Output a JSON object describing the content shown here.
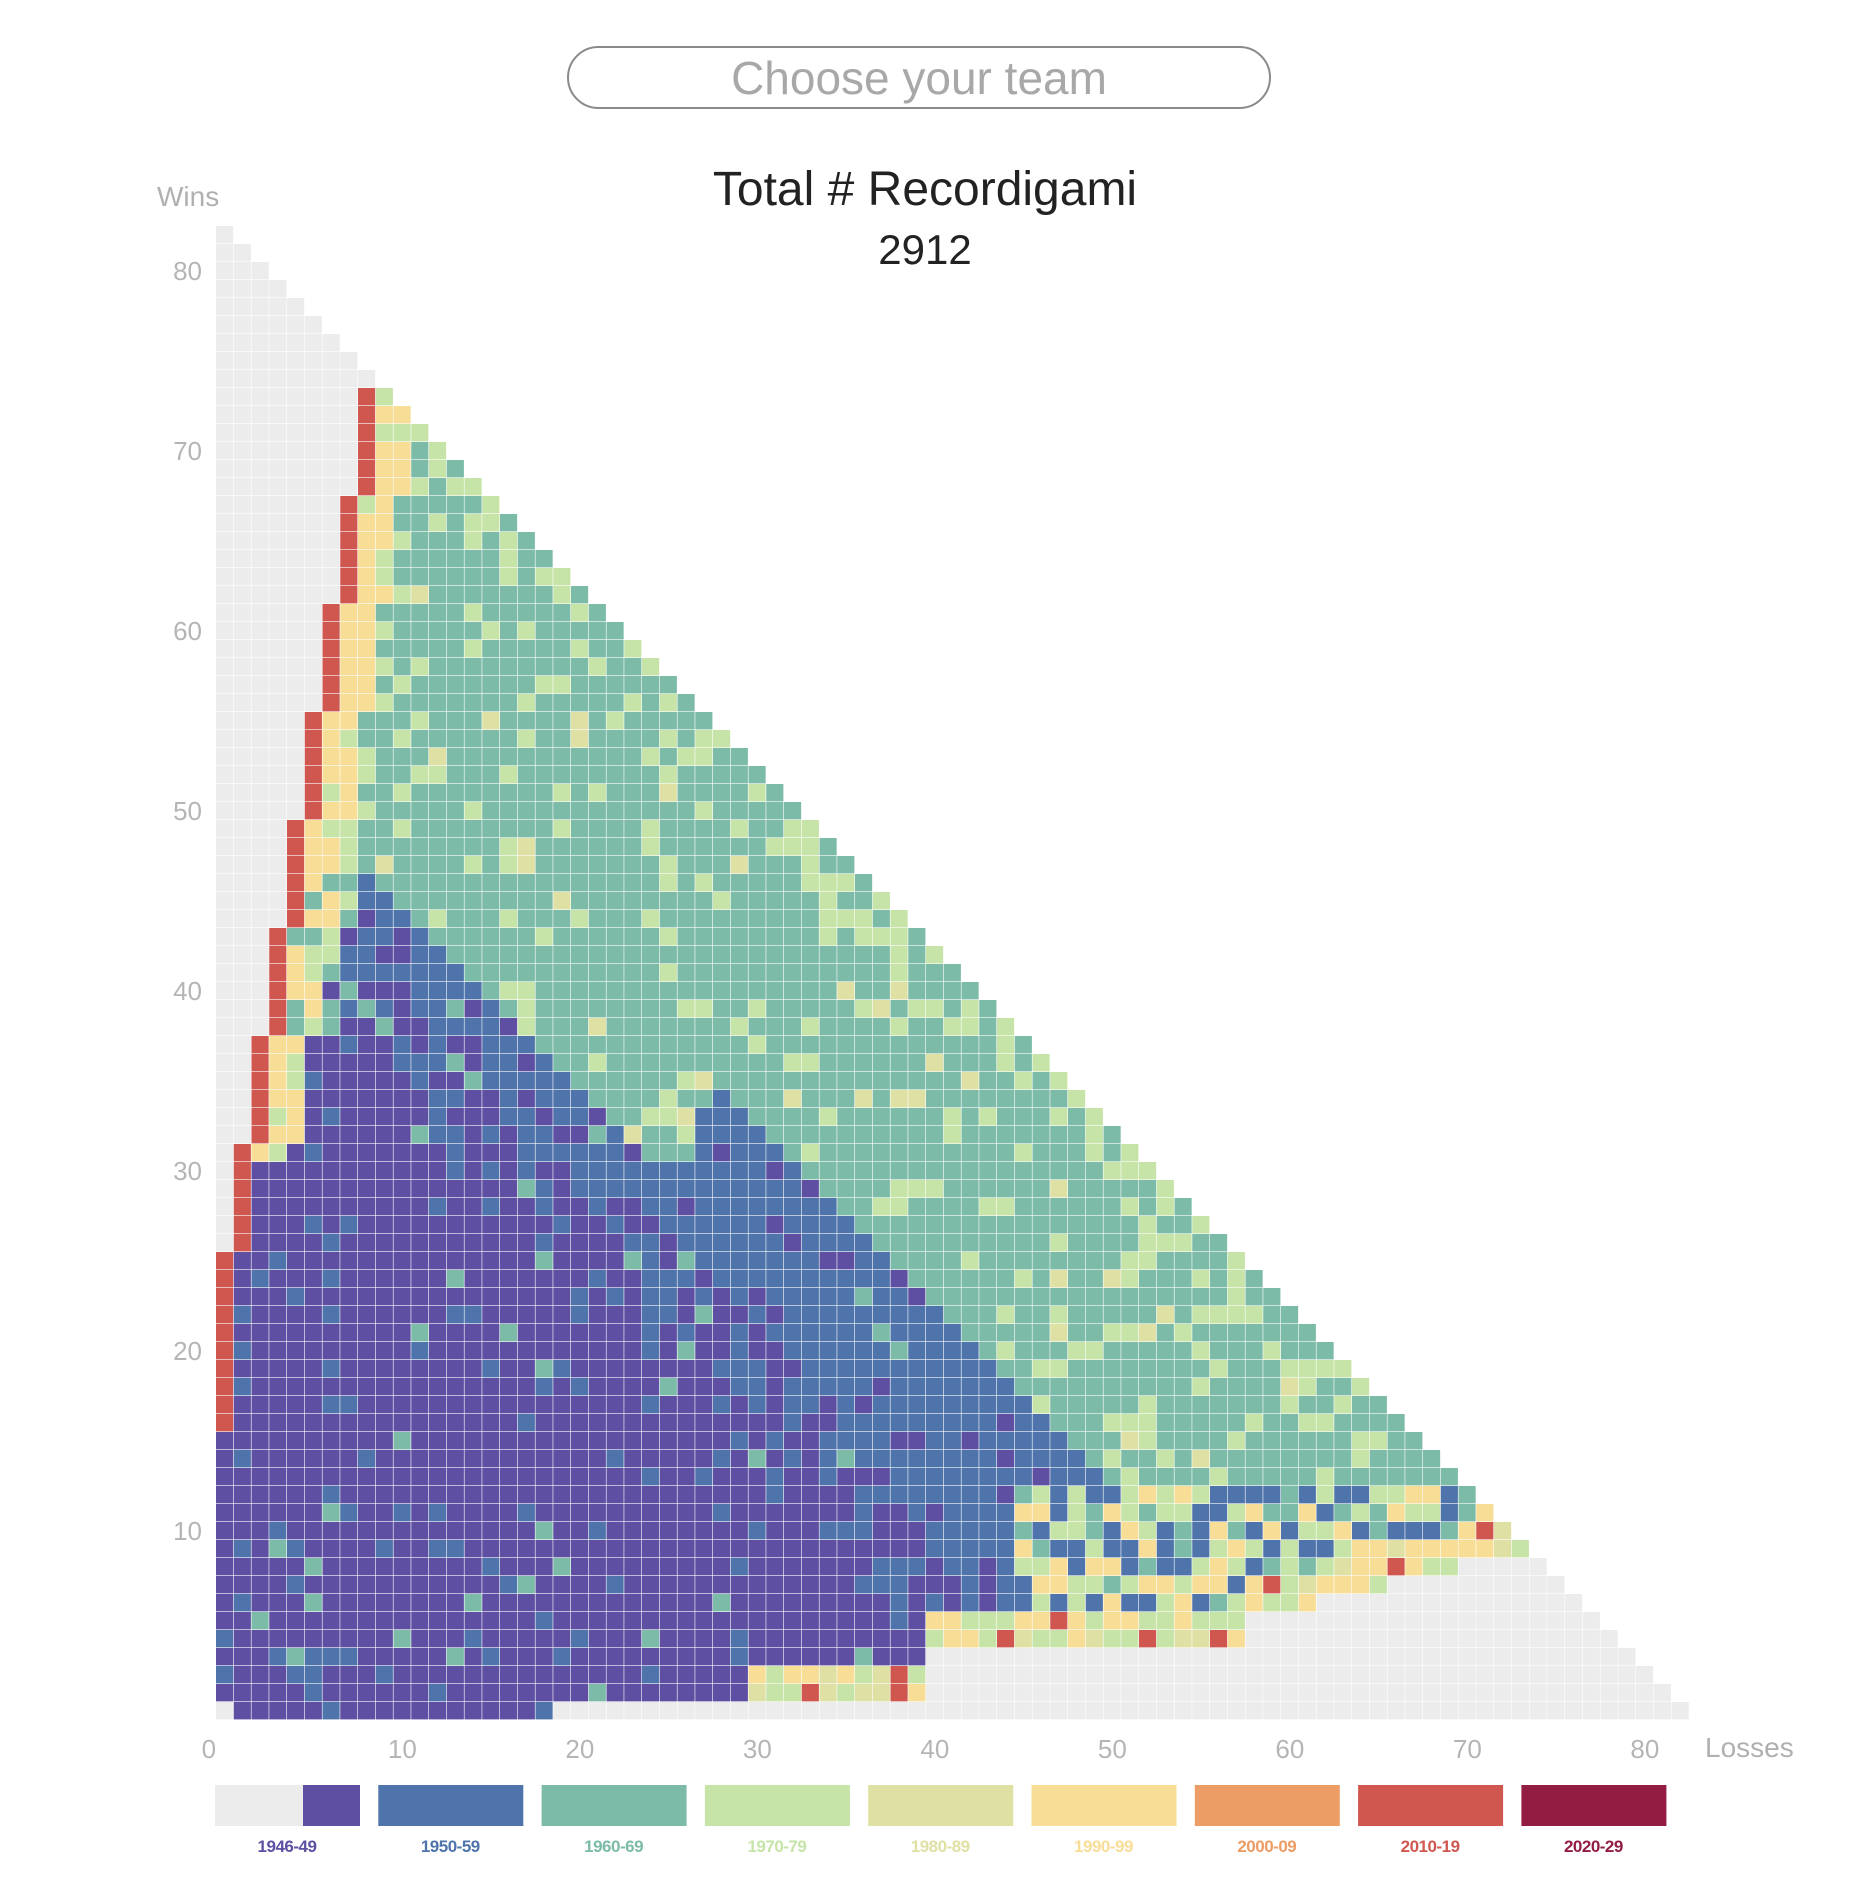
{
  "header": {
    "team_select_placeholder": "Choose your team"
  },
  "chart_data": {
    "type": "heatmap",
    "title": "Total # Recordigami",
    "total": "2912",
    "xlabel": "Losses",
    "ylabel": "Wins",
    "xlim": [
      0,
      82
    ],
    "ylim": [
      0,
      82
    ],
    "x_ticks": [
      "0",
      "10",
      "20",
      "30",
      "40",
      "50",
      "60",
      "70",
      "80"
    ],
    "y_ticks": [
      "10",
      "20",
      "30",
      "40",
      "50",
      "60",
      "70",
      "80"
    ],
    "value_meaning": "decade in which each win-loss record was first achieved",
    "legend": [
      {
        "label": "1946-49",
        "color": "#5e4fa2",
        "unused_color": "#ececec"
      },
      {
        "label": "1950-59",
        "color": "#4e74ab"
      },
      {
        "label": "1960-69",
        "color": "#7dbba9"
      },
      {
        "label": "1970-79",
        "color": "#c6e4a8"
      },
      {
        "label": "1980-89",
        "color": "#dfe0a3"
      },
      {
        "label": "1990-99",
        "color": "#f8dd97"
      },
      {
        "label": "2000-09",
        "color": "#ec9c65"
      },
      {
        "label": "2010-19",
        "color": "#d05750"
      },
      {
        "label": "2020-29",
        "color": "#931c42"
      }
    ],
    "unused_cell_color": "#ececec"
  }
}
